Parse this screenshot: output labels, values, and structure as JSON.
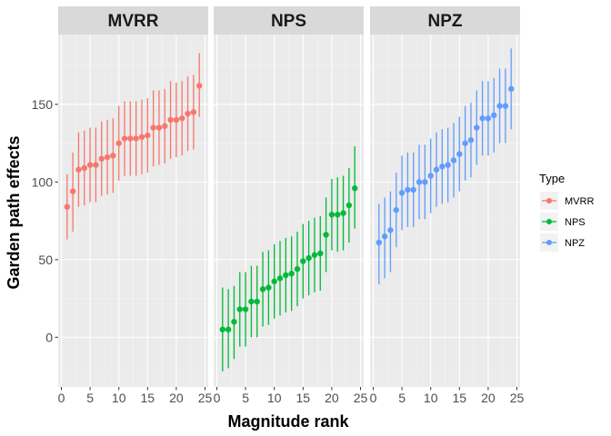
{
  "chart_data": {
    "type": "scatter",
    "xlabel": "Magnitude rank",
    "ylabel": "Garden path effects",
    "xlim": [
      0,
      25
    ],
    "ylim": [
      -32,
      195
    ],
    "x_ticks": [
      0,
      5,
      10,
      15,
      20,
      25
    ],
    "y_ticks": [
      0,
      50,
      100,
      150
    ],
    "grid": true,
    "legend": {
      "title": "Type",
      "position": "right",
      "entries": [
        {
          "label": "MVRR",
          "color": "#F8766D"
        },
        {
          "label": "NPS",
          "color": "#00BA38"
        },
        {
          "label": "NPZ",
          "color": "#619CFF"
        }
      ]
    },
    "facets": [
      {
        "label": "MVRR",
        "color": "#F8766D",
        "x": [
          1,
          2,
          3,
          4,
          5,
          6,
          7,
          8,
          9,
          10,
          11,
          12,
          13,
          14,
          15,
          16,
          17,
          18,
          19,
          20,
          21,
          22,
          23,
          24
        ],
        "y": [
          84,
          94,
          108,
          109,
          111,
          111,
          115,
          116,
          117,
          125,
          128,
          128,
          128,
          129,
          130,
          135,
          135,
          136,
          140,
          140,
          141,
          144,
          145,
          162
        ],
        "ymin": [
          63,
          68,
          84,
          85,
          87,
          87,
          91,
          92,
          93,
          101,
          104,
          104,
          104,
          105,
          106,
          110,
          111,
          112,
          115,
          116,
          117,
          120,
          121,
          142
        ],
        "ymax": [
          105,
          119,
          132,
          133,
          135,
          135,
          139,
          140,
          141,
          149,
          152,
          152,
          152,
          153,
          154,
          159,
          159,
          160,
          165,
          164,
          165,
          168,
          169,
          183
        ]
      },
      {
        "label": "NPS",
        "color": "#00BA38",
        "x": [
          1,
          2,
          3,
          4,
          5,
          6,
          7,
          8,
          9,
          10,
          11,
          12,
          13,
          14,
          15,
          16,
          17,
          18,
          19,
          20,
          21,
          22,
          23,
          24
        ],
        "y": [
          5,
          5,
          10,
          18,
          18,
          23,
          23,
          31,
          32,
          36,
          38,
          40,
          41,
          44,
          49,
          51,
          53,
          54,
          66,
          79,
          79,
          80,
          85,
          96
        ],
        "ymin": [
          -22,
          -20,
          -14,
          -6,
          -6,
          0,
          0,
          7,
          8,
          12,
          14,
          16,
          17,
          20,
          25,
          27,
          29,
          30,
          42,
          56,
          55,
          56,
          61,
          70
        ],
        "ymax": [
          32,
          31,
          33,
          42,
          42,
          46,
          46,
          55,
          56,
          60,
          62,
          64,
          65,
          68,
          73,
          75,
          77,
          78,
          90,
          102,
          103,
          104,
          109,
          123
        ]
      },
      {
        "label": "NPZ",
        "color": "#619CFF",
        "x": [
          1,
          2,
          3,
          4,
          5,
          6,
          7,
          8,
          9,
          10,
          11,
          12,
          13,
          14,
          15,
          16,
          17,
          18,
          19,
          20,
          21,
          22,
          23,
          24
        ],
        "y": [
          61,
          65,
          69,
          82,
          93,
          95,
          95,
          100,
          100,
          104,
          108,
          110,
          111,
          114,
          118,
          125,
          127,
          135,
          141,
          141,
          143,
          149,
          149,
          160
        ],
        "ymin": [
          34,
          38,
          42,
          58,
          69,
          71,
          71,
          76,
          76,
          80,
          84,
          86,
          87,
          90,
          94,
          101,
          103,
          111,
          117,
          117,
          119,
          125,
          125,
          134
        ],
        "ymax": [
          86,
          90,
          94,
          106,
          117,
          119,
          119,
          124,
          124,
          128,
          132,
          134,
          135,
          138,
          142,
          149,
          151,
          159,
          165,
          165,
          167,
          173,
          173,
          186
        ]
      }
    ]
  }
}
